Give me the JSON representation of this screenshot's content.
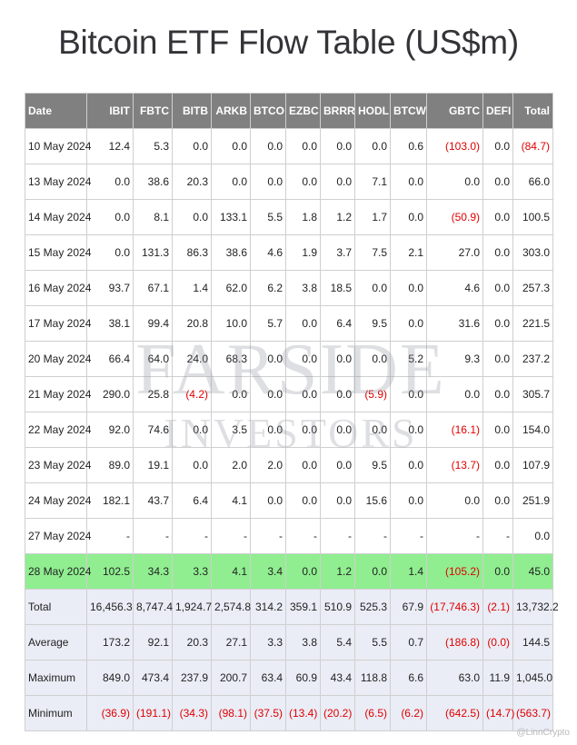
{
  "title": "Bitcoin ETF Flow Table (US$m)",
  "columns": [
    "Date",
    "IBIT",
    "FBTC",
    "BITB",
    "ARKB",
    "BTCO",
    "EZBC",
    "BRRR",
    "HODL",
    "BTCW",
    "GBTC",
    "DEFI",
    "Total"
  ],
  "rows": [
    [
      "10 May 2024",
      "12.4",
      "5.3",
      "0.0",
      "0.0",
      "0.0",
      "0.0",
      "0.0",
      "0.0",
      "0.6",
      "(103.0)",
      "0.0",
      "(84.7)"
    ],
    [
      "13 May 2024",
      "0.0",
      "38.6",
      "20.3",
      "0.0",
      "0.0",
      "0.0",
      "0.0",
      "7.1",
      "0.0",
      "0.0",
      "0.0",
      "66.0"
    ],
    [
      "14 May 2024",
      "0.0",
      "8.1",
      "0.0",
      "133.1",
      "5.5",
      "1.8",
      "1.2",
      "1.7",
      "0.0",
      "(50.9)",
      "0.0",
      "100.5"
    ],
    [
      "15 May 2024",
      "0.0",
      "131.3",
      "86.3",
      "38.6",
      "4.6",
      "1.9",
      "3.7",
      "7.5",
      "2.1",
      "27.0",
      "0.0",
      "303.0"
    ],
    [
      "16 May 2024",
      "93.7",
      "67.1",
      "1.4",
      "62.0",
      "6.2",
      "3.8",
      "18.5",
      "0.0",
      "0.0",
      "4.6",
      "0.0",
      "257.3"
    ],
    [
      "17 May 2024",
      "38.1",
      "99.4",
      "20.8",
      "10.0",
      "5.7",
      "0.0",
      "6.4",
      "9.5",
      "0.0",
      "31.6",
      "0.0",
      "221.5"
    ],
    [
      "20 May 2024",
      "66.4",
      "64.0",
      "24.0",
      "68.3",
      "0.0",
      "0.0",
      "0.0",
      "0.0",
      "5.2",
      "9.3",
      "0.0",
      "237.2"
    ],
    [
      "21 May 2024",
      "290.0",
      "25.8",
      "(4.2)",
      "0.0",
      "0.0",
      "0.0",
      "0.0",
      "(5.9)",
      "0.0",
      "0.0",
      "0.0",
      "305.7"
    ],
    [
      "22 May 2024",
      "92.0",
      "74.6",
      "0.0",
      "3.5",
      "0.0",
      "0.0",
      "0.0",
      "0.0",
      "0.0",
      "(16.1)",
      "0.0",
      "154.0"
    ],
    [
      "23 May 2024",
      "89.0",
      "19.1",
      "0.0",
      "2.0",
      "2.0",
      "0.0",
      "0.0",
      "9.5",
      "0.0",
      "(13.7)",
      "0.0",
      "107.9"
    ],
    [
      "24 May 2024",
      "182.1",
      "43.7",
      "6.4",
      "4.1",
      "0.0",
      "0.0",
      "0.0",
      "15.6",
      "0.0",
      "0.0",
      "0.0",
      "251.9"
    ],
    [
      "27 May 2024",
      "-",
      "-",
      "-",
      "-",
      "-",
      "-",
      "-",
      "-",
      "-",
      "-",
      "-",
      "0.0"
    ],
    [
      "28 May 2024",
      "102.5",
      "34.3",
      "3.3",
      "4.1",
      "3.4",
      "0.0",
      "1.2",
      "0.0",
      "1.4",
      "(105.2)",
      "0.0",
      "45.0"
    ]
  ],
  "highlight_row_index": 12,
  "summary_rows": [
    [
      "Total",
      "16,456.3",
      "8,747.4",
      "1,924.7",
      "2,574.8",
      "314.2",
      "359.1",
      "510.9",
      "525.3",
      "67.9",
      "(17,746.3)",
      "(2.1)",
      "13,732.2"
    ],
    [
      "Average",
      "173.2",
      "92.1",
      "20.3",
      "27.1",
      "3.3",
      "3.8",
      "5.4",
      "5.5",
      "0.7",
      "(186.8)",
      "(0.0)",
      "144.5"
    ],
    [
      "Maximum",
      "849.0",
      "473.4",
      "237.9",
      "200.7",
      "63.4",
      "60.9",
      "43.4",
      "118.8",
      "6.6",
      "63.0",
      "11.9",
      "1,045.0"
    ],
    [
      "Minimum",
      "(36.9)",
      "(191.1)",
      "(34.3)",
      "(98.1)",
      "(37.5)",
      "(13.4)",
      "(20.2)",
      "(6.5)",
      "(6.2)",
      "(642.5)",
      "(14.7)",
      "(563.7)"
    ]
  ],
  "watermark": {
    "line1": "FARSIDE",
    "line2": "INVESTORS"
  },
  "credit": "@LinnCrypto",
  "colors": {
    "header_bg": "#808080",
    "highlight": "#90ee90",
    "summary_bg": "#eaedf6",
    "negative": "#e00000"
  }
}
